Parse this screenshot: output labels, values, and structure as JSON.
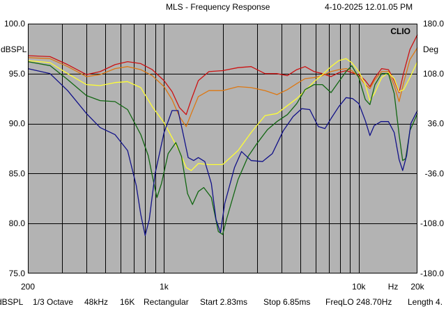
{
  "header": {
    "title": "MLS - Frequency Response",
    "datetime": "4-10-2025 12.01.05 PM",
    "brand": "CLIO"
  },
  "footer": {
    "unit": "dBSPL",
    "smoothing": "1/3 Octave",
    "sample_rate": "48kHz",
    "size": "16K",
    "window": "Rectangular",
    "start": "Start 2.83ms",
    "stop": "Stop 6.85ms",
    "freqlo": "FreqLO 248.70Hz",
    "length": "Length 4."
  },
  "colors": {
    "background": "#ffffff",
    "plot_background": "#b3b3b3",
    "grid": "#000000",
    "series_red": "#cc1111",
    "series_orange": "#dd7711",
    "series_yellow": "#ffff33",
    "series_green": "#116611",
    "series_blue": "#111188"
  },
  "chart_data": {
    "type": "line",
    "title": "MLS - Frequency Response",
    "xscale": "log",
    "xlim": [
      200,
      20000
    ],
    "ylim_left": [
      75,
      100
    ],
    "ylim_right": [
      -180,
      180
    ],
    "left_axis_label": "dBSPL",
    "right_axis_label": "Deg",
    "x_unit_label": "Hz",
    "grid": true,
    "left_ticks": [
      "100.0",
      "95.0",
      "90.0",
      "85.0",
      "80.0",
      "75.0"
    ],
    "right_ticks": [
      "180.0",
      "108.0",
      "36.0",
      "-36.0",
      "-108.0",
      "-180.0"
    ],
    "x_ticks": [
      {
        "value": 200,
        "label": "200"
      },
      {
        "value": 1000,
        "label": "1k"
      },
      {
        "value": 10000,
        "label": "10k"
      },
      {
        "value": 20000,
        "label": "20k"
      }
    ],
    "series": [
      {
        "color": "#cc1111",
        "points": [
          [
            200,
            96.8
          ],
          [
            260,
            96.7
          ],
          [
            320,
            95.9
          ],
          [
            400,
            94.9
          ],
          [
            470,
            95.2
          ],
          [
            560,
            95.9
          ],
          [
            650,
            96.2
          ],
          [
            760,
            96.0
          ],
          [
            870,
            95.4
          ],
          [
            1000,
            94.3
          ],
          [
            1100,
            93.2
          ],
          [
            1200,
            91.6
          ],
          [
            1300,
            90.9
          ],
          [
            1380,
            92.4
          ],
          [
            1500,
            94.3
          ],
          [
            1700,
            95.2
          ],
          [
            2000,
            95.3
          ],
          [
            2400,
            95.6
          ],
          [
            2800,
            95.7
          ],
          [
            3300,
            95.0
          ],
          [
            3800,
            95.0
          ],
          [
            4300,
            94.8
          ],
          [
            4800,
            95.4
          ],
          [
            5300,
            95.7
          ],
          [
            5900,
            95.2
          ],
          [
            6500,
            95.0
          ],
          [
            7200,
            94.7
          ],
          [
            7900,
            95.1
          ],
          [
            8600,
            95.3
          ],
          [
            9200,
            95.1
          ],
          [
            10000,
            94.9
          ],
          [
            10800,
            94.3
          ],
          [
            11400,
            93.7
          ],
          [
            12100,
            94.6
          ],
          [
            13100,
            95.5
          ],
          [
            14200,
            95.4
          ],
          [
            15200,
            94.3
          ],
          [
            16100,
            93.1
          ],
          [
            17000,
            95.1
          ],
          [
            18300,
            97.4
          ],
          [
            20000,
            98.9
          ]
        ]
      },
      {
        "color": "#dd7711",
        "points": [
          [
            200,
            96.6
          ],
          [
            260,
            96.5
          ],
          [
            320,
            95.7
          ],
          [
            400,
            94.7
          ],
          [
            470,
            94.9
          ],
          [
            560,
            95.5
          ],
          [
            650,
            95.7
          ],
          [
            760,
            95.4
          ],
          [
            870,
            94.8
          ],
          [
            1000,
            93.7
          ],
          [
            1100,
            92.4
          ],
          [
            1200,
            90.7
          ],
          [
            1300,
            89.7
          ],
          [
            1380,
            91.0
          ],
          [
            1500,
            92.7
          ],
          [
            1700,
            93.3
          ],
          [
            2000,
            93.3
          ],
          [
            2400,
            93.7
          ],
          [
            2800,
            93.6
          ],
          [
            3300,
            93.3
          ],
          [
            3800,
            92.9
          ],
          [
            4300,
            93.4
          ],
          [
            4800,
            94.0
          ],
          [
            5300,
            94.5
          ],
          [
            5900,
            94.6
          ],
          [
            6500,
            94.8
          ],
          [
            7200,
            95.2
          ],
          [
            7900,
            95.4
          ],
          [
            8600,
            95.5
          ],
          [
            9200,
            95.3
          ],
          [
            10000,
            94.7
          ],
          [
            10800,
            93.9
          ],
          [
            11400,
            93.5
          ],
          [
            12100,
            94.4
          ],
          [
            13100,
            95.2
          ],
          [
            14200,
            95.2
          ],
          [
            15200,
            93.8
          ],
          [
            16100,
            92.2
          ],
          [
            17000,
            94.1
          ],
          [
            18300,
            96.4
          ],
          [
            20000,
            97.6
          ]
        ]
      },
      {
        "color": "#ffff33",
        "points": [
          [
            200,
            96.3
          ],
          [
            260,
            96.1
          ],
          [
            320,
            95.0
          ],
          [
            400,
            93.9
          ],
          [
            470,
            93.8
          ],
          [
            560,
            94.1
          ],
          [
            650,
            94.2
          ],
          [
            760,
            93.6
          ],
          [
            870,
            91.7
          ],
          [
            1000,
            90.1
          ],
          [
            1100,
            88.6
          ],
          [
            1200,
            87.2
          ],
          [
            1300,
            85.6
          ],
          [
            1380,
            85.3
          ],
          [
            1500,
            86.0
          ],
          [
            1700,
            85.9
          ],
          [
            2000,
            85.9
          ],
          [
            2400,
            87.3
          ],
          [
            2800,
            89.1
          ],
          [
            3300,
            90.8
          ],
          [
            3800,
            91.0
          ],
          [
            4300,
            91.8
          ],
          [
            4800,
            92.5
          ],
          [
            5300,
            93.3
          ],
          [
            5900,
            94.2
          ],
          [
            6500,
            94.9
          ],
          [
            7200,
            95.7
          ],
          [
            7900,
            96.3
          ],
          [
            8600,
            96.5
          ],
          [
            9200,
            96.1
          ],
          [
            10000,
            95.2
          ],
          [
            10800,
            93.9
          ],
          [
            11400,
            92.3
          ],
          [
            12100,
            93.1
          ],
          [
            13100,
            94.6
          ],
          [
            14200,
            95.1
          ],
          [
            15200,
            94.5
          ],
          [
            16100,
            93.2
          ],
          [
            17000,
            93.4
          ],
          [
            18300,
            94.6
          ],
          [
            20000,
            96.2
          ]
        ]
      },
      {
        "color": "#116611",
        "points": [
          [
            200,
            96.2
          ],
          [
            260,
            95.8
          ],
          [
            320,
            94.4
          ],
          [
            400,
            92.8
          ],
          [
            470,
            92.3
          ],
          [
            560,
            92.2
          ],
          [
            650,
            91.4
          ],
          [
            760,
            88.9
          ],
          [
            830,
            86.8
          ],
          [
            870,
            84.8
          ],
          [
            920,
            82.6
          ],
          [
            970,
            84.0
          ],
          [
            1050,
            87.0
          ],
          [
            1150,
            88.1
          ],
          [
            1230,
            86.7
          ],
          [
            1320,
            83.0
          ],
          [
            1400,
            81.9
          ],
          [
            1500,
            83.2
          ],
          [
            1600,
            83.6
          ],
          [
            1750,
            82.6
          ],
          [
            1900,
            79.2
          ],
          [
            2000,
            78.9
          ],
          [
            2100,
            80.5
          ],
          [
            2400,
            84.4
          ],
          [
            2700,
            86.7
          ],
          [
            3000,
            88.0
          ],
          [
            3400,
            89.4
          ],
          [
            3800,
            90.2
          ],
          [
            4300,
            90.9
          ],
          [
            4800,
            92.0
          ],
          [
            5300,
            93.4
          ],
          [
            5900,
            93.9
          ],
          [
            6500,
            93.9
          ],
          [
            7200,
            93.1
          ],
          [
            7900,
            94.2
          ],
          [
            8600,
            95.2
          ],
          [
            9200,
            95.8
          ],
          [
            10000,
            94.6
          ],
          [
            10800,
            92.4
          ],
          [
            11400,
            91.9
          ],
          [
            12100,
            93.9
          ],
          [
            13100,
            95.0
          ],
          [
            14200,
            95.0
          ],
          [
            15200,
            93.0
          ],
          [
            16100,
            88.9
          ],
          [
            16800,
            86.3
          ],
          [
            17400,
            86.5
          ],
          [
            18300,
            89.3
          ],
          [
            20000,
            91.0
          ]
        ]
      },
      {
        "color": "#111188",
        "points": [
          [
            200,
            95.5
          ],
          [
            260,
            95.0
          ],
          [
            320,
            93.3
          ],
          [
            400,
            91.0
          ],
          [
            470,
            89.6
          ],
          [
            560,
            88.9
          ],
          [
            650,
            87.3
          ],
          [
            720,
            83.8
          ],
          [
            760,
            80.9
          ],
          [
            800,
            78.8
          ],
          [
            840,
            80.4
          ],
          [
            900,
            85.0
          ],
          [
            1000,
            89.1
          ],
          [
            1100,
            91.3
          ],
          [
            1180,
            91.3
          ],
          [
            1250,
            89.1
          ],
          [
            1330,
            86.6
          ],
          [
            1420,
            86.3
          ],
          [
            1500,
            86.6
          ],
          [
            1620,
            86.2
          ],
          [
            1750,
            84.0
          ],
          [
            1850,
            80.4
          ],
          [
            1950,
            79.1
          ],
          [
            2050,
            82.0
          ],
          [
            2300,
            85.6
          ],
          [
            2500,
            87.2
          ],
          [
            2800,
            86.3
          ],
          [
            3200,
            86.2
          ],
          [
            3600,
            87.0
          ],
          [
            4100,
            89.3
          ],
          [
            4600,
            90.7
          ],
          [
            5100,
            91.5
          ],
          [
            5600,
            91.4
          ],
          [
            6200,
            89.7
          ],
          [
            6700,
            89.5
          ],
          [
            7200,
            90.5
          ],
          [
            7900,
            91.7
          ],
          [
            8600,
            92.6
          ],
          [
            9300,
            92.5
          ],
          [
            10000,
            92.0
          ],
          [
            10800,
            90.3
          ],
          [
            11400,
            88.8
          ],
          [
            12000,
            89.8
          ],
          [
            13000,
            90.2
          ],
          [
            14200,
            90.2
          ],
          [
            15200,
            89.1
          ],
          [
            16100,
            86.4
          ],
          [
            16800,
            85.3
          ],
          [
            17600,
            86.8
          ],
          [
            18500,
            90.0
          ],
          [
            20000,
            91.3
          ]
        ]
      }
    ]
  }
}
